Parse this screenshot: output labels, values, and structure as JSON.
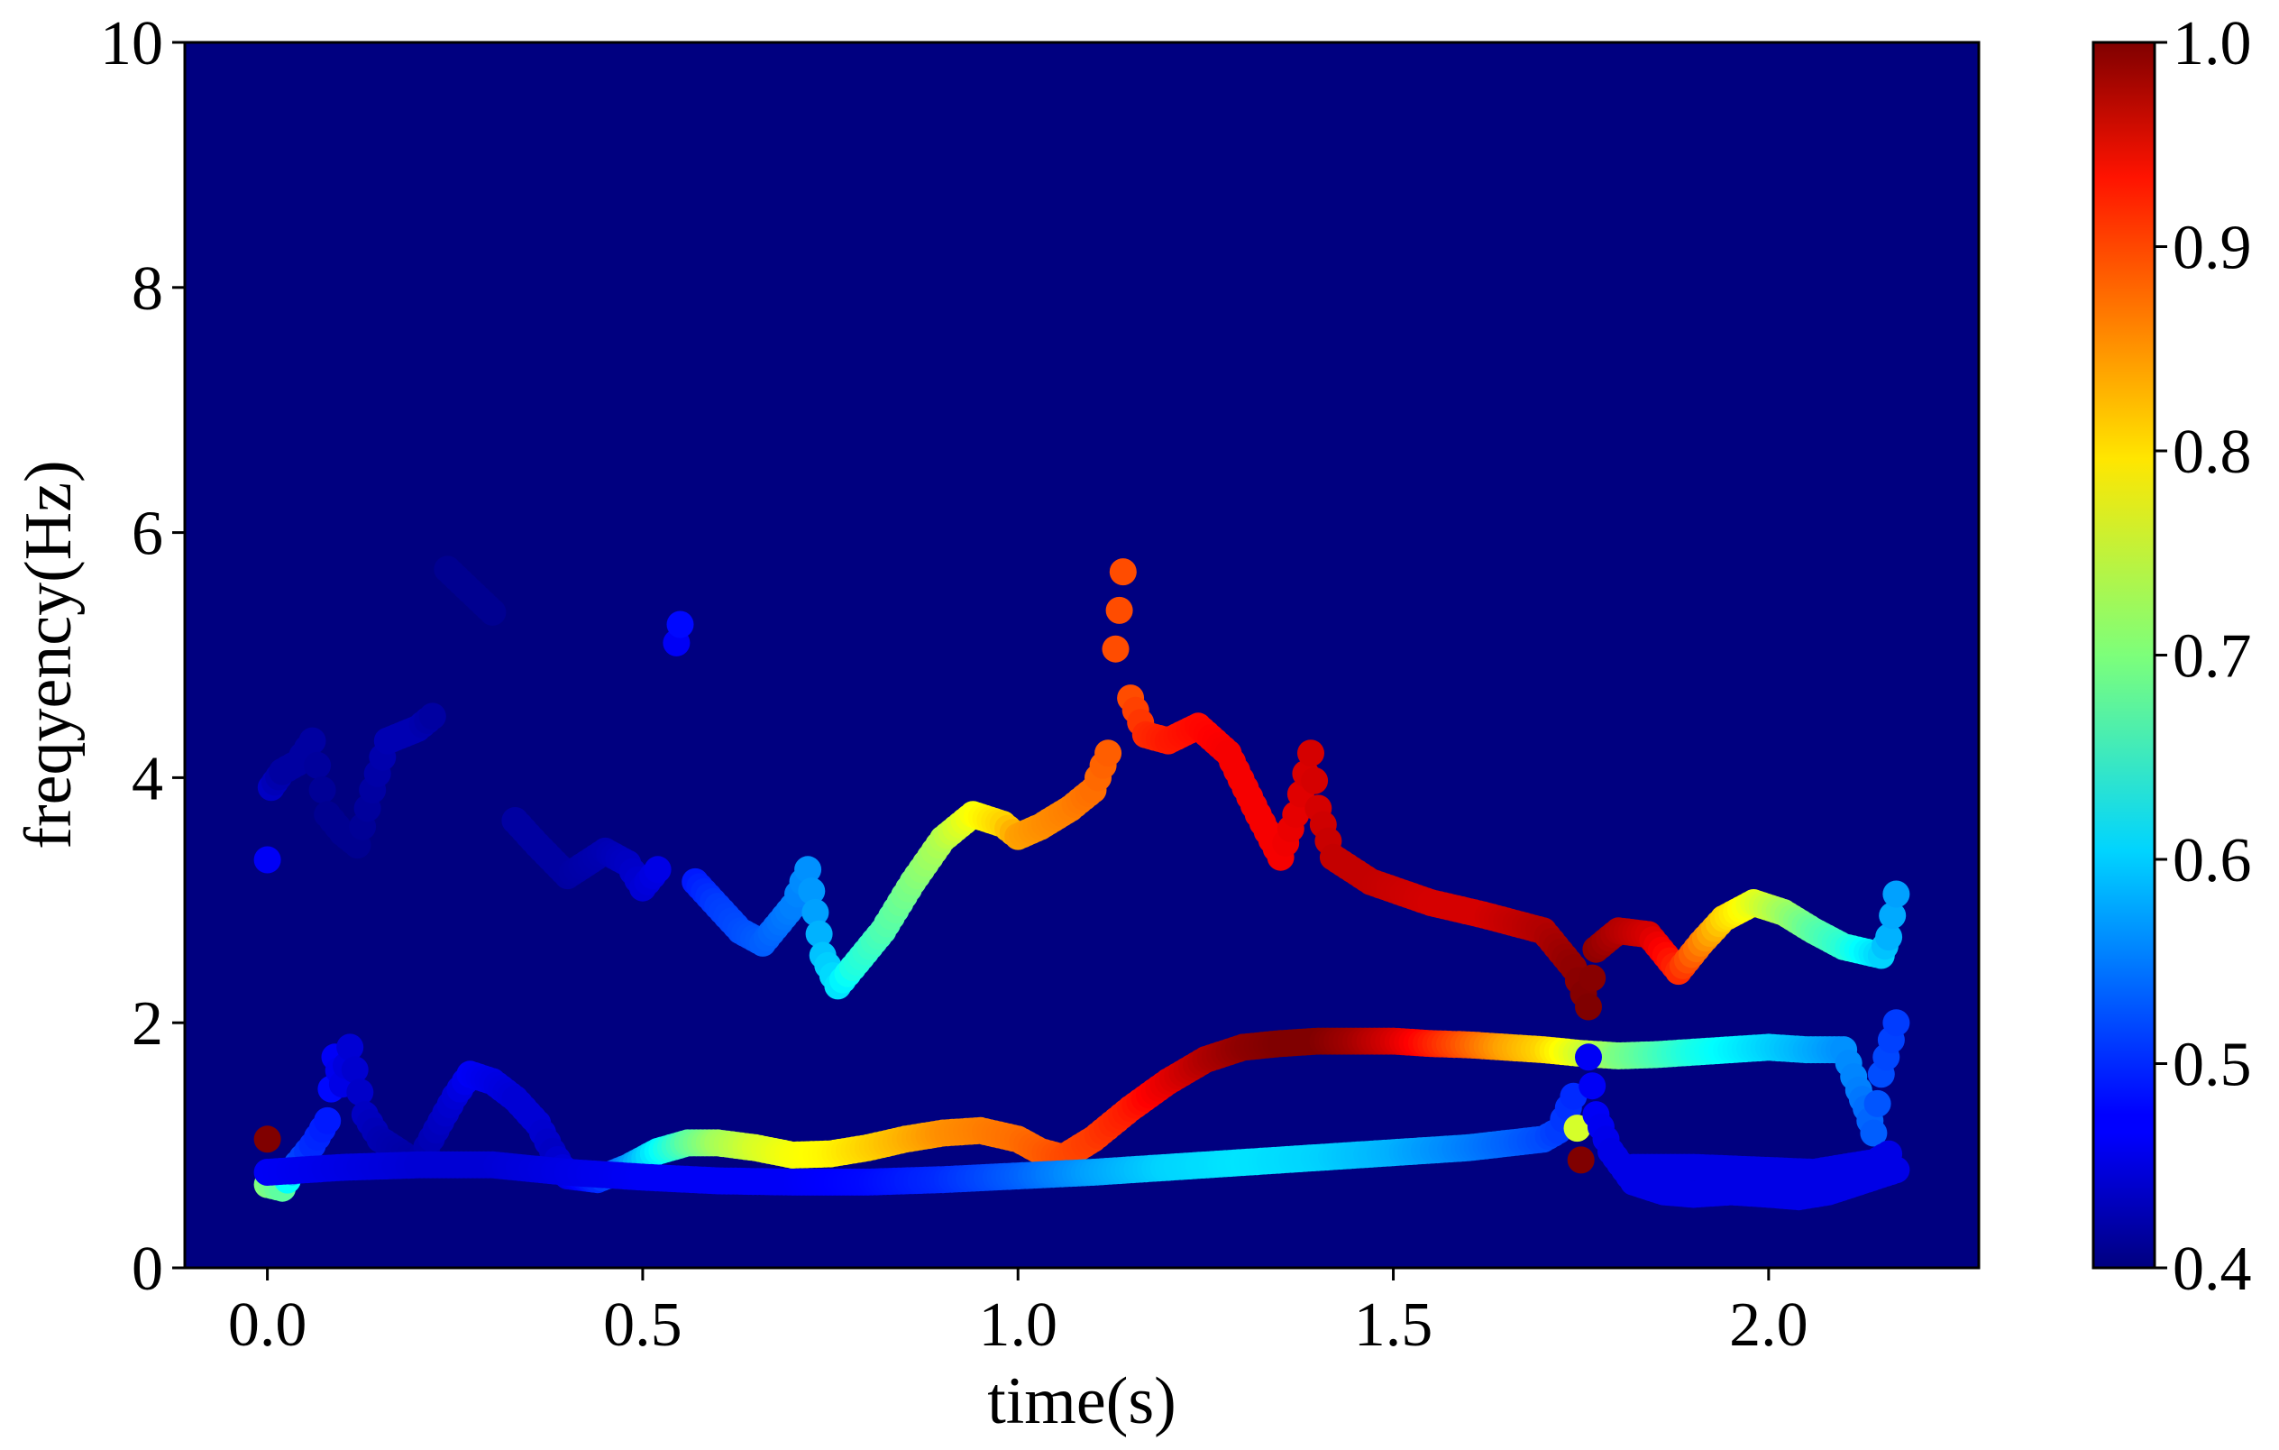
{
  "chart_data": {
    "type": "scatter",
    "title": "",
    "xlabel": "time(s)",
    "ylabel": "freqyency(Hz)",
    "xlim": [
      -0.11,
      2.28
    ],
    "ylim": [
      0,
      10
    ],
    "x_ticks": [
      "0.0",
      "0.5",
      "1.0",
      "1.5",
      "2.0"
    ],
    "y_ticks": [
      "0",
      "2",
      "4",
      "6",
      "8",
      "10"
    ],
    "background_color": "#000080",
    "colormap": "jet",
    "colorbar": {
      "range": [
        0.4,
        1.0
      ],
      "ticks": [
        "0.4",
        "0.5",
        "0.6",
        "0.7",
        "0.8",
        "0.9",
        "1.0"
      ]
    },
    "grid": false,
    "series": [
      {
        "points": [
          [
            0.0,
            3.33,
            0.47
          ],
          [
            0.005,
            3.92,
            0.44
          ],
          [
            0.02,
            4.05,
            0.42
          ],
          [
            0.04,
            4.12,
            0.42
          ],
          [
            0.06,
            4.3,
            0.42
          ],
          [
            0.08,
            3.7,
            0.41
          ],
          [
            0.1,
            3.55,
            0.41
          ],
          [
            0.12,
            3.45,
            0.41
          ],
          [
            0.14,
            3.9,
            0.42
          ],
          [
            0.16,
            4.3,
            0.43
          ],
          [
            0.2,
            4.4,
            0.43
          ],
          [
            0.22,
            4.5,
            0.42
          ],
          [
            0.24,
            5.7,
            0.41
          ],
          [
            0.3,
            5.35,
            0.41
          ],
          [
            0.33,
            3.65,
            0.42
          ],
          [
            0.36,
            3.45,
            0.42
          ],
          [
            0.4,
            3.2,
            0.42
          ],
          [
            0.45,
            3.4,
            0.43
          ],
          [
            0.48,
            3.3,
            0.44
          ],
          [
            0.5,
            3.1,
            0.45
          ],
          [
            0.52,
            3.25,
            0.46
          ],
          [
            0.545,
            5.1,
            0.47
          ],
          [
            0.55,
            5.25,
            0.48
          ],
          [
            0.57,
            3.15,
            0.49
          ],
          [
            0.6,
            2.95,
            0.51
          ],
          [
            0.63,
            2.75,
            0.52
          ],
          [
            0.66,
            2.65,
            0.53
          ],
          [
            0.7,
            2.95,
            0.55
          ],
          [
            0.72,
            3.25,
            0.56
          ],
          [
            0.73,
            2.9,
            0.57
          ],
          [
            0.74,
            2.55,
            0.59
          ],
          [
            0.76,
            2.3,
            0.61
          ],
          [
            0.78,
            2.45,
            0.64
          ],
          [
            0.82,
            2.75,
            0.67
          ],
          [
            0.86,
            3.15,
            0.7
          ],
          [
            0.9,
            3.5,
            0.73
          ],
          [
            0.94,
            3.7,
            0.77
          ],
          [
            0.98,
            3.62,
            0.8
          ],
          [
            1.0,
            3.52,
            0.83
          ],
          [
            1.03,
            3.6,
            0.84
          ],
          [
            1.07,
            3.75,
            0.85
          ],
          [
            1.1,
            3.9,
            0.86
          ],
          [
            1.12,
            4.2,
            0.87
          ],
          [
            1.13,
            5.05,
            0.88
          ],
          [
            1.14,
            5.68,
            0.88
          ],
          [
            1.15,
            4.65,
            0.88
          ],
          [
            1.17,
            4.35,
            0.9
          ],
          [
            1.2,
            4.3,
            0.91
          ],
          [
            1.24,
            4.42,
            0.92
          ],
          [
            1.28,
            4.2,
            0.93
          ],
          [
            1.32,
            3.7,
            0.93
          ],
          [
            1.35,
            3.35,
            0.93
          ],
          [
            1.37,
            3.7,
            0.94
          ],
          [
            1.39,
            4.2,
            0.95
          ],
          [
            1.4,
            3.75,
            0.95
          ],
          [
            1.42,
            3.35,
            0.96
          ],
          [
            1.47,
            3.15,
            0.96
          ],
          [
            1.55,
            2.98,
            0.95
          ],
          [
            1.62,
            2.88,
            0.95
          ],
          [
            1.7,
            2.75,
            0.97
          ],
          [
            1.74,
            2.45,
            0.99
          ],
          [
            1.76,
            2.13,
            1.0
          ],
          [
            1.77,
            2.6,
            0.99
          ],
          [
            1.8,
            2.75,
            0.97
          ],
          [
            1.84,
            2.72,
            0.95
          ],
          [
            1.88,
            2.42,
            0.9
          ],
          [
            1.91,
            2.65,
            0.85
          ],
          [
            1.94,
            2.85,
            0.8
          ],
          [
            1.98,
            2.98,
            0.76
          ],
          [
            2.02,
            2.9,
            0.72
          ],
          [
            2.06,
            2.75,
            0.68
          ],
          [
            2.1,
            2.62,
            0.65
          ],
          [
            2.15,
            2.55,
            0.6
          ],
          [
            2.16,
            2.7,
            0.58
          ],
          [
            2.17,
            3.05,
            0.57
          ]
        ]
      },
      {
        "points": [
          [
            0.0,
            1.05,
            1.0
          ],
          [
            0.0,
            0.68,
            0.7
          ],
          [
            0.02,
            0.65,
            0.68
          ],
          [
            0.04,
            0.85,
            0.52
          ],
          [
            0.06,
            1.0,
            0.5
          ],
          [
            0.08,
            1.2,
            0.49
          ],
          [
            0.09,
            1.72,
            0.47
          ],
          [
            0.1,
            1.5,
            0.46
          ],
          [
            0.11,
            1.8,
            0.45
          ],
          [
            0.13,
            1.25,
            0.44
          ],
          [
            0.15,
            1.05,
            0.43
          ],
          [
            0.2,
            0.85,
            0.42
          ],
          [
            0.25,
            1.4,
            0.45
          ],
          [
            0.27,
            1.58,
            0.47
          ],
          [
            0.3,
            1.52,
            0.46
          ],
          [
            0.33,
            1.38,
            0.45
          ],
          [
            0.36,
            1.18,
            0.45
          ],
          [
            0.38,
            0.95,
            0.44
          ],
          [
            0.4,
            0.75,
            0.46
          ],
          [
            0.44,
            0.72,
            0.5
          ],
          [
            0.48,
            0.82,
            0.56
          ],
          [
            0.52,
            0.95,
            0.62
          ],
          [
            0.56,
            1.02,
            0.68
          ],
          [
            0.6,
            1.02,
            0.72
          ],
          [
            0.65,
            0.98,
            0.75
          ],
          [
            0.7,
            0.92,
            0.77
          ],
          [
            0.75,
            0.93,
            0.78
          ],
          [
            0.8,
            0.98,
            0.8
          ],
          [
            0.85,
            1.05,
            0.82
          ],
          [
            0.9,
            1.1,
            0.84
          ],
          [
            0.95,
            1.12,
            0.85
          ],
          [
            1.0,
            1.05,
            0.86
          ],
          [
            1.03,
            0.95,
            0.87
          ],
          [
            1.06,
            0.9,
            0.88
          ],
          [
            1.1,
            1.05,
            0.89
          ],
          [
            1.15,
            1.3,
            0.91
          ],
          [
            1.2,
            1.52,
            0.94
          ],
          [
            1.25,
            1.7,
            0.97
          ],
          [
            1.3,
            1.8,
            0.99
          ],
          [
            1.35,
            1.83,
            1.0
          ],
          [
            1.4,
            1.85,
            1.0
          ],
          [
            1.45,
            1.85,
            0.98
          ],
          [
            1.5,
            1.85,
            0.95
          ],
          [
            1.55,
            1.83,
            0.91
          ],
          [
            1.6,
            1.82,
            0.87
          ],
          [
            1.65,
            1.8,
            0.83
          ],
          [
            1.7,
            1.78,
            0.8
          ],
          [
            1.75,
            1.75,
            0.75
          ],
          [
            1.8,
            1.73,
            0.7
          ],
          [
            1.85,
            1.74,
            0.67
          ],
          [
            1.9,
            1.76,
            0.64
          ],
          [
            1.95,
            1.78,
            0.62
          ],
          [
            2.0,
            1.8,
            0.6
          ],
          [
            2.05,
            1.78,
            0.58
          ],
          [
            2.1,
            1.78,
            0.56
          ],
          [
            2.12,
            1.45,
            0.55
          ],
          [
            2.13,
            1.3,
            0.54
          ],
          [
            2.14,
            1.1,
            0.53
          ],
          [
            2.15,
            1.58,
            0.52
          ],
          [
            2.17,
            2.0,
            0.51
          ]
        ]
      },
      {
        "points": [
          [
            0.0,
            0.78,
            0.47
          ],
          [
            0.1,
            0.82,
            0.46
          ],
          [
            0.2,
            0.84,
            0.45
          ],
          [
            0.3,
            0.84,
            0.45
          ],
          [
            0.4,
            0.78,
            0.46
          ],
          [
            0.5,
            0.74,
            0.47
          ],
          [
            0.6,
            0.71,
            0.47
          ],
          [
            0.7,
            0.7,
            0.47
          ],
          [
            0.8,
            0.7,
            0.48
          ],
          [
            0.9,
            0.72,
            0.5
          ],
          [
            1.0,
            0.75,
            0.53
          ],
          [
            1.1,
            0.78,
            0.57
          ],
          [
            1.2,
            0.82,
            0.6
          ],
          [
            1.3,
            0.86,
            0.61
          ],
          [
            1.4,
            0.9,
            0.6
          ],
          [
            1.5,
            0.94,
            0.58
          ],
          [
            1.6,
            0.98,
            0.55
          ],
          [
            1.7,
            1.05,
            0.52
          ],
          [
            1.72,
            1.12,
            0.51
          ],
          [
            1.74,
            1.4,
            0.5
          ],
          [
            1.75,
            0.88,
            1.0
          ],
          [
            1.76,
            1.72,
            0.47
          ],
          [
            1.77,
            1.25,
            0.47
          ],
          [
            1.79,
            0.95,
            0.46
          ],
          [
            1.82,
            0.7,
            0.46
          ],
          [
            1.86,
            0.62,
            0.46
          ],
          [
            1.9,
            0.6,
            0.46
          ],
          [
            1.95,
            0.62,
            0.46
          ],
          [
            2.0,
            0.6,
            0.46
          ],
          [
            2.04,
            0.58,
            0.46
          ],
          [
            2.08,
            0.62,
            0.46
          ],
          [
            2.12,
            0.7,
            0.46
          ],
          [
            2.15,
            0.76,
            0.46
          ],
          [
            2.17,
            0.8,
            0.46
          ],
          [
            1.82,
            0.82,
            0.46
          ],
          [
            1.9,
            0.82,
            0.46
          ],
          [
            1.98,
            0.8,
            0.46
          ],
          [
            2.06,
            0.78,
            0.46
          ],
          [
            2.14,
            0.86,
            0.46
          ],
          [
            2.16,
            0.93,
            0.46
          ]
        ]
      }
    ]
  }
}
